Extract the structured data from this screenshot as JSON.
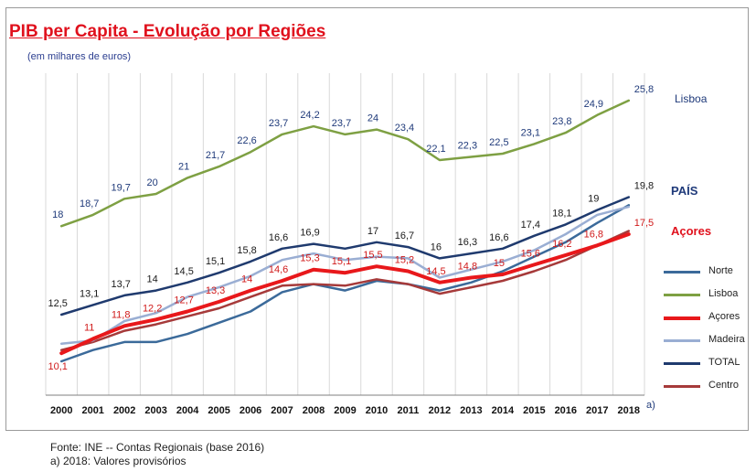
{
  "title": "PIB per Capita - Evolução por Regiões",
  "subtitle": "(em milhares  de euros)",
  "source": "Fonte: INE -- Contas Regionais (base 2016)",
  "footnote": "a) 2018:  Valores provisórios",
  "chart_data": {
    "type": "line",
    "title": "PIB per Capita - Evolução por Regiões",
    "ylabel": "(em milhares  de euros)",
    "x": [
      "2000",
      "2001",
      "2002",
      "2003",
      "2004",
      "2005",
      "2006",
      "2007",
      "2008",
      "2009",
      "2010",
      "2011",
      "2012",
      "2013",
      "2014",
      "2015",
      "2016",
      "2017",
      "2018"
    ],
    "x_suffix_note": "a)",
    "ylim": [
      7.5,
      27.5
    ],
    "grid": "vertical",
    "series": [
      {
        "name": "Norte",
        "color": "#3b6a9a",
        "width": 2.5,
        "labeled": false,
        "values": [
          9.6,
          10.3,
          10.8,
          10.8,
          11.3,
          12.0,
          12.7,
          13.9,
          14.4,
          14.0,
          14.6,
          14.4,
          14.0,
          14.5,
          15.2,
          16.1,
          17.0,
          18.2,
          19.3
        ]
      },
      {
        "name": "Lisboa",
        "color": "#7ea043",
        "width": 2.5,
        "labeled": true,
        "label_color": "#1f3a7a",
        "end_label": "Lisboa",
        "end_label_color": "#1f3a7a",
        "values": [
          18,
          18.7,
          19.7,
          20,
          21,
          21.7,
          22.6,
          23.7,
          24.2,
          23.7,
          24,
          23.4,
          22.1,
          22.3,
          22.5,
          23.1,
          23.8,
          24.9,
          25.8
        ],
        "labels": [
          "18",
          "18,7",
          "19,7",
          "20",
          "21",
          "21,7",
          "22,6",
          "23,7",
          "24,2",
          "23,7",
          "24",
          "23,4",
          "22,1",
          "22,3",
          "22,5",
          "23,1",
          "23,8",
          "24,9",
          "25,8"
        ]
      },
      {
        "name": "Açores",
        "color": "#e8181b",
        "width": 4,
        "labeled": true,
        "label_color": "#d01a1a",
        "end_label": "Açores",
        "end_label_color": "#e0111d",
        "values": [
          10.1,
          11,
          11.8,
          12.2,
          12.7,
          13.3,
          14,
          14.6,
          15.3,
          15.1,
          15.5,
          15.2,
          14.5,
          14.8,
          15,
          15.6,
          16.2,
          16.8,
          17.5
        ],
        "labels": [
          "10,1",
          "11",
          "11,8",
          "12,2",
          "12,7",
          "13,3",
          "14",
          "14,6",
          "15,3",
          "15,1",
          "15,5",
          "15,2",
          "14,5",
          "14,8",
          "15",
          "15,6",
          "16,2",
          "16,8",
          "17,5"
        ]
      },
      {
        "name": "Madeira",
        "color": "#9aaed3",
        "width": 2.5,
        "labeled": false,
        "values": [
          10.7,
          10.9,
          12.1,
          12.6,
          13.6,
          14.2,
          14.9,
          15.9,
          16.3,
          15.9,
          16.1,
          16.0,
          14.8,
          15.3,
          15.8,
          16.5,
          17.5,
          18.7,
          19.2
        ]
      },
      {
        "name": "TOTAL",
        "color": "#1f3a6e",
        "width": 2.5,
        "labeled": true,
        "label_color": "#1a1a1a",
        "end_label": "PAÍS",
        "end_label_color": "#1f3a7a",
        "values": [
          12.5,
          13.1,
          13.7,
          14,
          14.5,
          15.1,
          15.8,
          16.6,
          16.9,
          16.6,
          17,
          16.7,
          16,
          16.3,
          16.6,
          17.4,
          18.1,
          19,
          19.8
        ],
        "labels": [
          "12,5",
          "13,1",
          "13,7",
          "14",
          "14,5",
          "15,1",
          "15,8",
          "16,6",
          "16,9",
          "",
          "17",
          "16,7",
          "16",
          "16,3",
          "16,6",
          "17,4",
          "18,1",
          "19",
          "19,8"
        ]
      },
      {
        "name": "Centro",
        "color": "#a63a3a",
        "width": 2.5,
        "labeled": false,
        "values": [
          10.3,
          10.8,
          11.5,
          11.9,
          12.4,
          12.9,
          13.6,
          14.3,
          14.4,
          14.3,
          14.7,
          14.4,
          13.8,
          14.2,
          14.6,
          15.2,
          15.9,
          16.8,
          17.7
        ]
      }
    ],
    "legend": [
      "Norte",
      "Lisboa",
      "Açores",
      "Madeira",
      "TOTAL",
      "Centro"
    ],
    "legend_position": "right"
  }
}
